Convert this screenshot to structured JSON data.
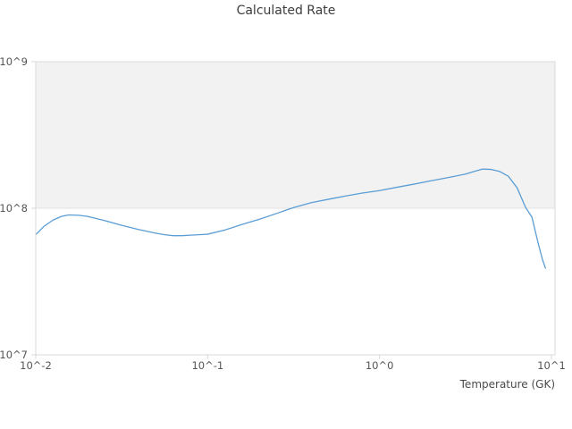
{
  "chart": {
    "title": "Calculated Rate",
    "xlabel": "Temperature (GK)"
  },
  "colors": {
    "line": "#5b9dd5",
    "band_fill": "#f2f2f2",
    "plot_border": "#d9d9d9",
    "gridline": "#e2e2e2",
    "tick_text": "#555555",
    "title_text": "#3d3d3d"
  },
  "chart_data": {
    "type": "line",
    "title": "Calculated Rate",
    "xlabel": "Temperature (GK)",
    "ylabel": "",
    "x_scale": "log",
    "y_scale": "log",
    "xlim": [
      0.01,
      10.5
    ],
    "ylim": [
      10000000.0,
      1000000000.0
    ],
    "grid": false,
    "legend_position": "none",
    "x_ticks": [
      {
        "value": 0.01,
        "label": "10^-2"
      },
      {
        "value": 0.1,
        "label": "10^-1"
      },
      {
        "value": 1.0,
        "label": "10^0"
      },
      {
        "value": 10.0,
        "label": "10^1"
      }
    ],
    "y_ticks": [
      {
        "value": 10000000.0,
        "label": "10^7"
      },
      {
        "value": 100000000.0,
        "label": "10^8"
      },
      {
        "value": 1000000000.0,
        "label": "10^9"
      }
    ],
    "shaded_band": {
      "from": 100000000.0,
      "to": 1000000000.0
    },
    "series": [
      {
        "name": "Calculated Rate",
        "points": [
          [
            0.01,
            66000000
          ],
          [
            0.0112,
            75500000
          ],
          [
            0.0126,
            83000000
          ],
          [
            0.0141,
            88000000
          ],
          [
            0.0155,
            90000000
          ],
          [
            0.0178,
            89500000
          ],
          [
            0.02,
            88000000
          ],
          [
            0.0251,
            82500000
          ],
          [
            0.0316,
            76500000
          ],
          [
            0.0398,
            71500000
          ],
          [
            0.0501,
            67500000
          ],
          [
            0.0562,
            66000000
          ],
          [
            0.0631,
            65000000
          ],
          [
            0.0708,
            65000000
          ],
          [
            0.0794,
            65500000
          ],
          [
            0.0891,
            66000000
          ],
          [
            0.1,
            66500000
          ],
          [
            0.1259,
            71000000
          ],
          [
            0.1585,
            77500000
          ],
          [
            0.1995,
            84000000
          ],
          [
            0.2512,
            92000000
          ],
          [
            0.2818,
            96500000
          ],
          [
            0.3162,
            101000000
          ],
          [
            0.3981,
            109000000
          ],
          [
            0.5012,
            115000000
          ],
          [
            0.631,
            121000000
          ],
          [
            0.7943,
            127000000
          ],
          [
            1.0,
            132000000
          ],
          [
            1.259,
            139000000
          ],
          [
            1.585,
            146000000
          ],
          [
            1.995,
            154000000
          ],
          [
            2.512,
            162000000
          ],
          [
            3.162,
            171000000
          ],
          [
            3.548,
            178000000
          ],
          [
            3.981,
            185000000
          ],
          [
            4.467,
            184000000
          ],
          [
            5.012,
            178000000
          ],
          [
            5.623,
            165000000
          ],
          [
            6.31,
            138000000
          ],
          [
            7.079,
            101000000
          ],
          [
            7.7,
            87000000
          ],
          [
            8.32,
            59500000
          ],
          [
            8.85,
            45000000
          ],
          [
            9.23,
            39000000
          ]
        ]
      }
    ]
  }
}
